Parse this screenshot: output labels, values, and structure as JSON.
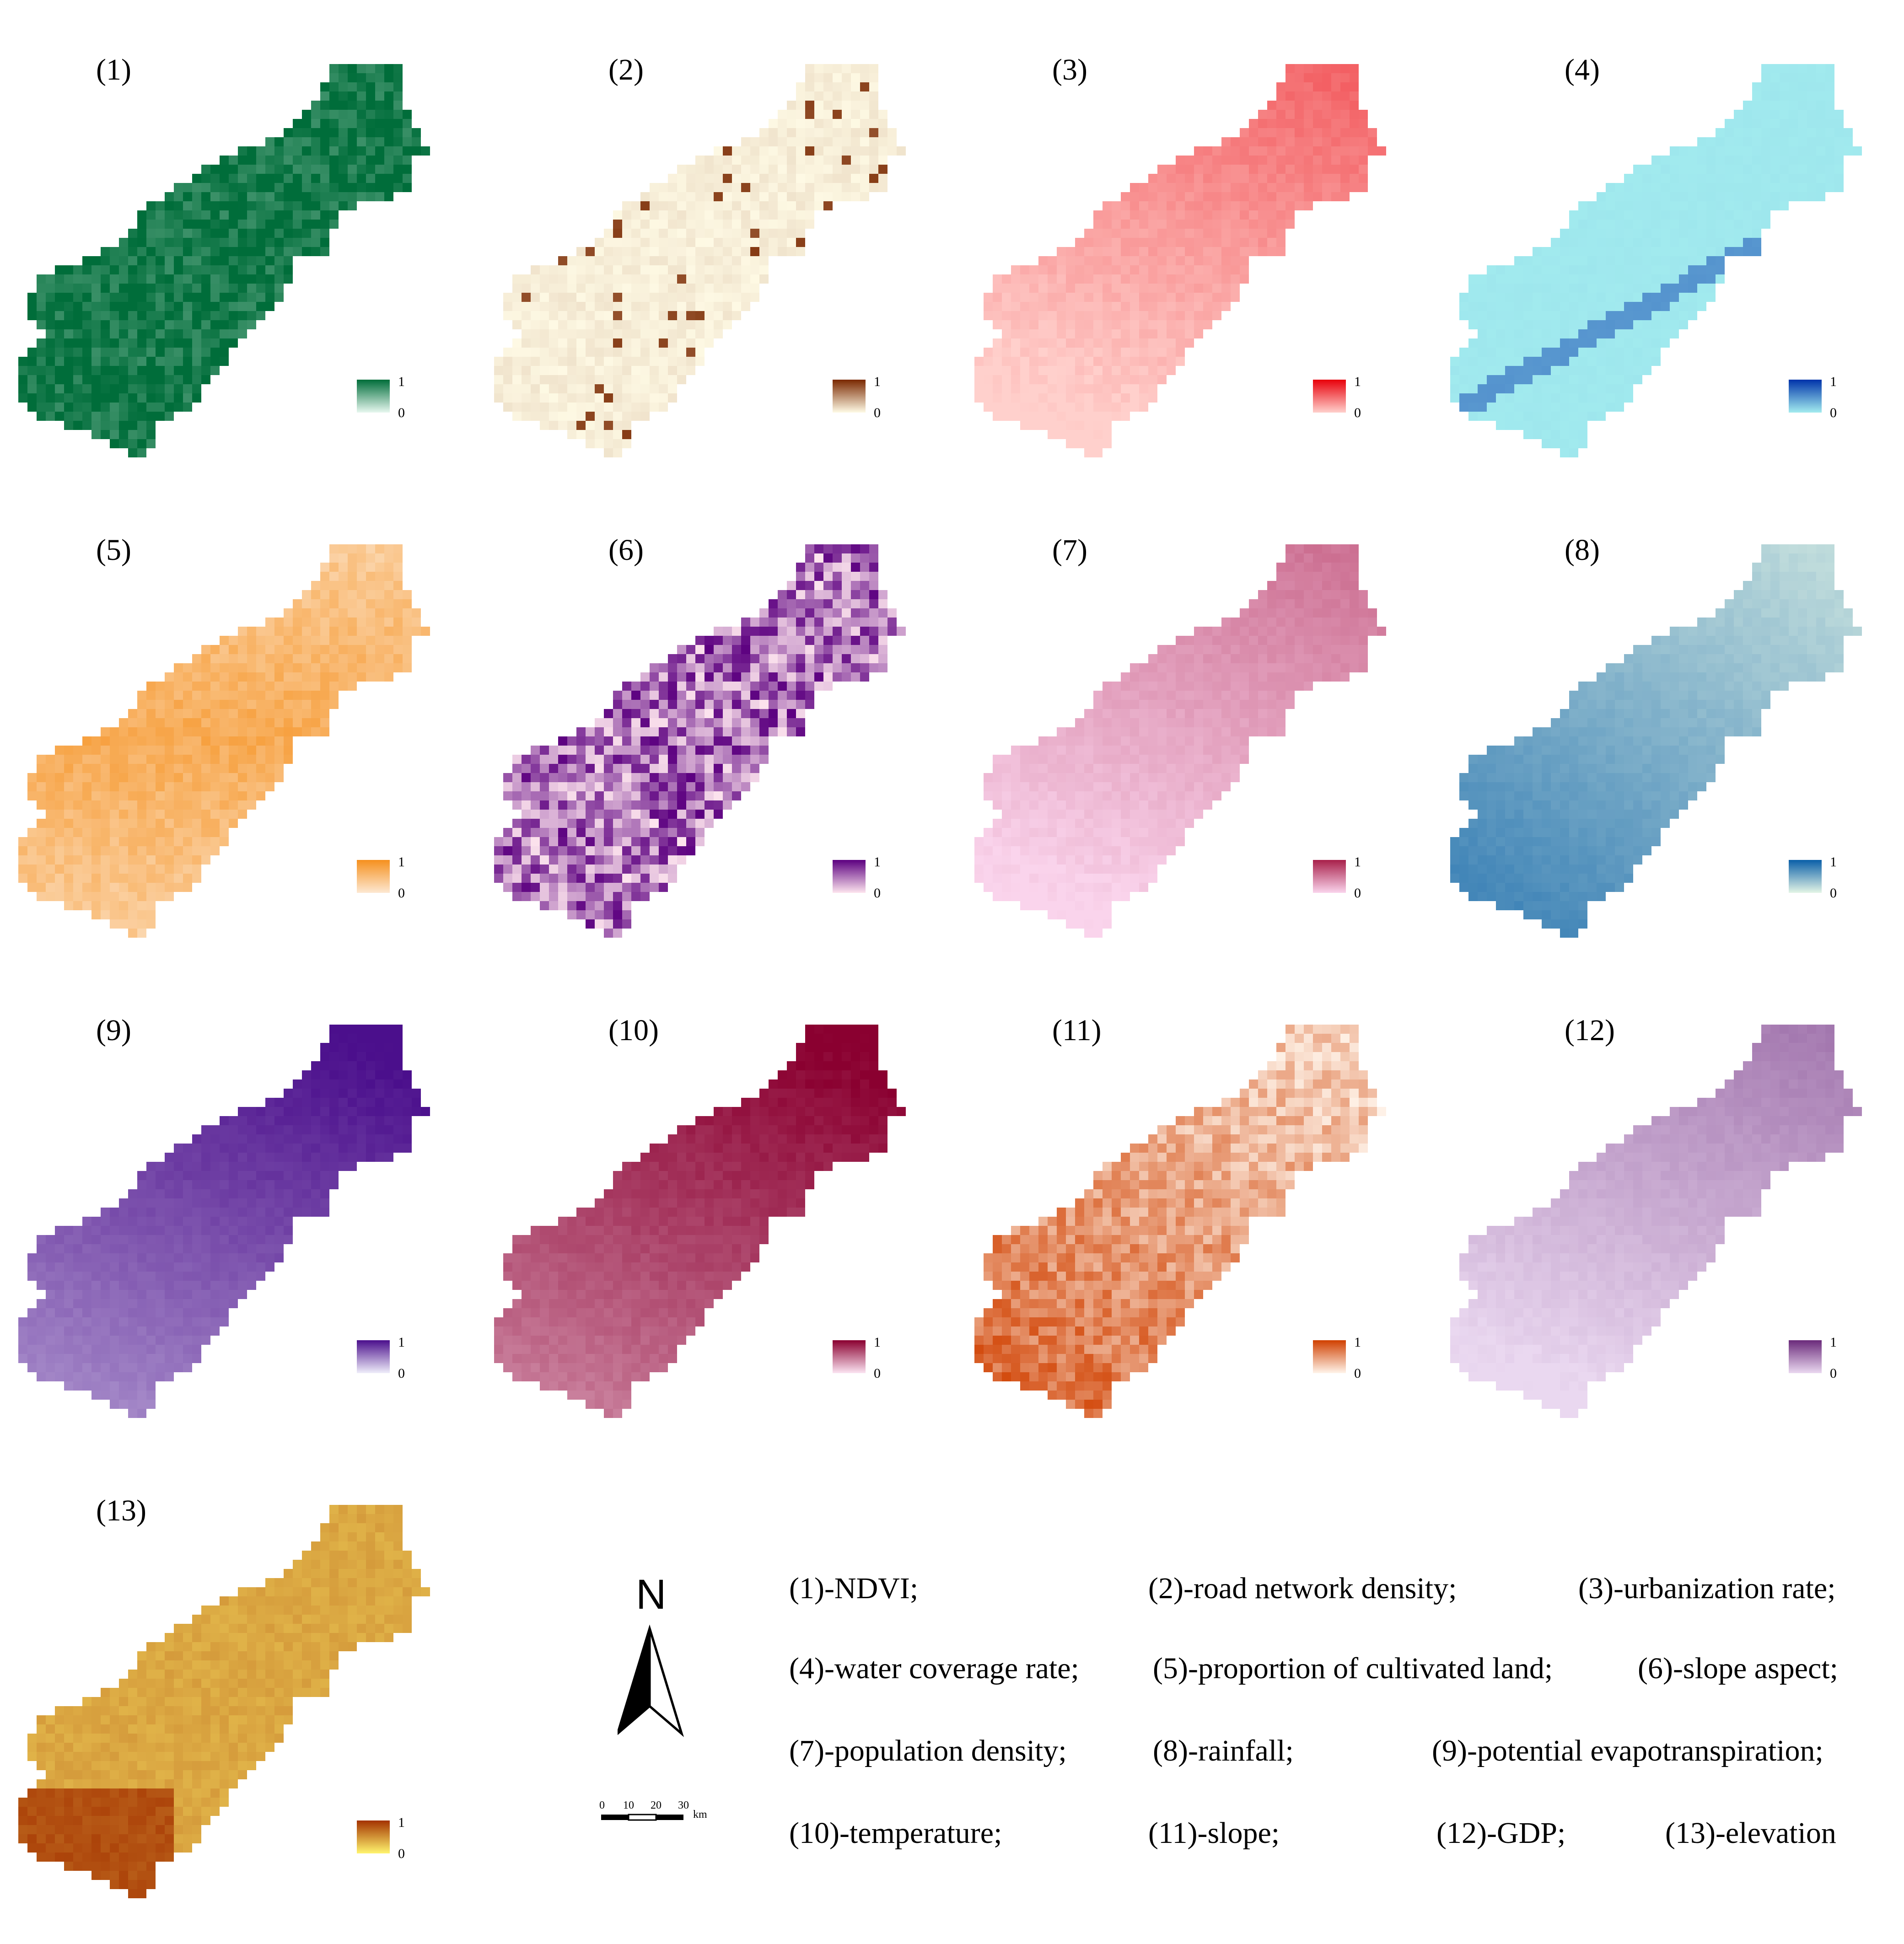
{
  "panels": [
    {
      "id": "(1)",
      "lo": "#e8f8f0",
      "hi": "#006d3a",
      "bias": 0.92,
      "noise": 0.35,
      "mode": "flat",
      "max": "1",
      "min": "0"
    },
    {
      "id": "(2)",
      "lo": "#fffbe6",
      "hi": "#7a2800",
      "bias": 0.06,
      "noise": 0.1,
      "mode": "spots",
      "max": "1",
      "min": "0"
    },
    {
      "id": "(3)",
      "lo": "#ffd0cc",
      "hi": "#e8000a",
      "bias": 0.08,
      "noise": 0.1,
      "mode": "north",
      "max": "1",
      "min": "0"
    },
    {
      "id": "(4)",
      "lo": "#a3ecef",
      "hi": "#0033aa",
      "bias": 0.02,
      "noise": 0.02,
      "mode": "river",
      "max": "1",
      "min": "0"
    },
    {
      "id": "(5)",
      "lo": "#fde8d2",
      "hi": "#f5901e",
      "bias": 0.35,
      "noise": 0.25,
      "mode": "center",
      "max": "1",
      "min": "0"
    },
    {
      "id": "(6)",
      "lo": "#fde4ee",
      "hi": "#5c0080",
      "bias": 0.5,
      "noise": 1.0,
      "mode": "flat",
      "max": "1",
      "min": "0"
    },
    {
      "id": "(7)",
      "lo": "#fad4ec",
      "hi": "#a8204a",
      "bias": 0.1,
      "noise": 0.08,
      "mode": "north",
      "max": "1",
      "min": "0"
    },
    {
      "id": "(8)",
      "lo": "#e4f5e6",
      "hi": "#0a5fa8",
      "bias": 0.4,
      "noise": 0.06,
      "mode": "south",
      "max": "1",
      "min": "0"
    },
    {
      "id": "(9)",
      "lo": "#efeefa",
      "hi": "#4b0f8c",
      "bias": 0.6,
      "noise": 0.06,
      "mode": "north",
      "max": "1",
      "min": "0"
    },
    {
      "id": "(10)",
      "lo": "#fbe4f2",
      "hi": "#8a0030",
      "bias": 0.6,
      "noise": 0.08,
      "mode": "north",
      "max": "1",
      "min": "0"
    },
    {
      "id": "(11)",
      "lo": "#fff4ea",
      "hi": "#d04000",
      "bias": 0.4,
      "noise": 0.45,
      "mode": "south",
      "max": "1",
      "min": "0"
    },
    {
      "id": "(12)",
      "lo": "#ead8f0",
      "hi": "#6a2a7a",
      "bias": 0.1,
      "noise": 0.06,
      "mode": "north",
      "max": "1",
      "min": "0"
    },
    {
      "id": "(13)",
      "lo": "#fff56e",
      "hi": "#a43200",
      "bias": 0.4,
      "noise": 0.12,
      "mode": "edge",
      "max": "1",
      "min": "0"
    }
  ],
  "north_arrow": {
    "letter": "N"
  },
  "scale_bar": {
    "ticks": [
      "0",
      "10",
      "20",
      "30"
    ],
    "unit": "km"
  },
  "captions": [
    "(1)-NDVI;",
    "(2)-road network density;",
    "(3)-urbanization rate;",
    "(4)-water coverage rate;",
    "(5)-proportion of cultivated land;",
    "(6)-slope aspect;",
    "(7)-population density;",
    "(8)-rainfall;",
    "(9)-potential evapotranspiration;",
    "(10)-temperature;",
    "(11)-slope;",
    "(12)-GDP;",
    "(13)-elevation"
  ]
}
